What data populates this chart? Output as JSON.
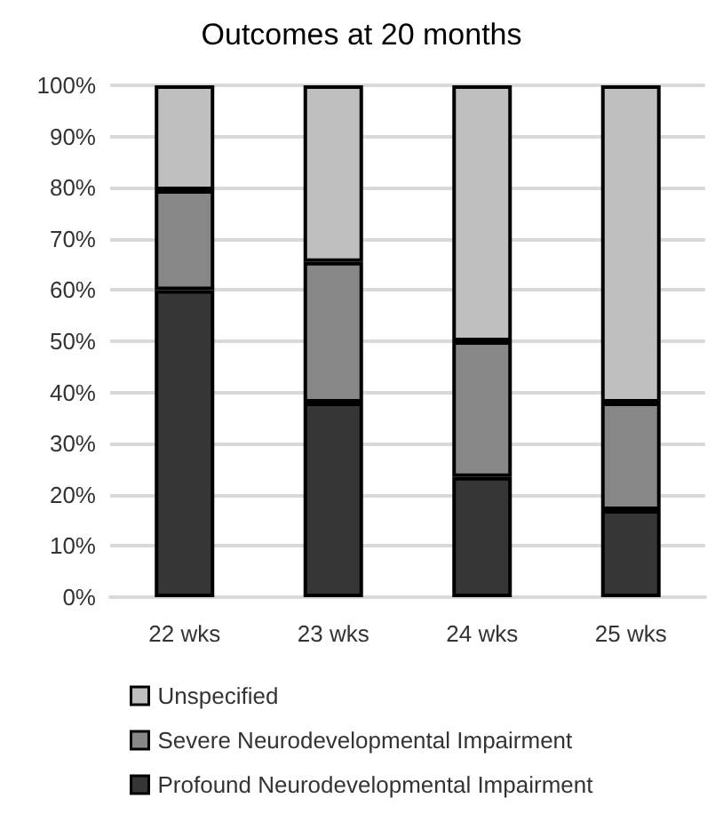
{
  "chart_data": {
    "type": "bar",
    "title": "Outcomes at 20 months",
    "categories": [
      "22 wks",
      "23 wks",
      "24 wks",
      "25 wks"
    ],
    "stacked": true,
    "series": [
      {
        "name": "Profound Neurodevelopmental Impairment",
        "color": "#363636",
        "values": [
          60,
          38,
          23.5,
          17
        ]
      },
      {
        "name": "Severe Neurodevelopmental Impairment",
        "color": "#878787",
        "values": [
          19.5,
          27.5,
          26.5,
          21
        ]
      },
      {
        "name": "Unspecified",
        "color": "#bfbfbf",
        "values": [
          20.5,
          34.5,
          50,
          62
        ]
      }
    ],
    "ylim": [
      0,
      100
    ],
    "yticks": [
      {
        "value": 0,
        "label": "0%"
      },
      {
        "value": 10,
        "label": "10%"
      },
      {
        "value": 20,
        "label": "20%"
      },
      {
        "value": 30,
        "label": "30%"
      },
      {
        "value": 40,
        "label": "40%"
      },
      {
        "value": 50,
        "label": "50%"
      },
      {
        "value": 60,
        "label": "60%"
      },
      {
        "value": 70,
        "label": "70%"
      },
      {
        "value": 80,
        "label": "80%"
      },
      {
        "value": 90,
        "label": "90%"
      },
      {
        "value": 100,
        "label": "100%"
      }
    ],
    "grid": "y",
    "legend": "bottom"
  }
}
